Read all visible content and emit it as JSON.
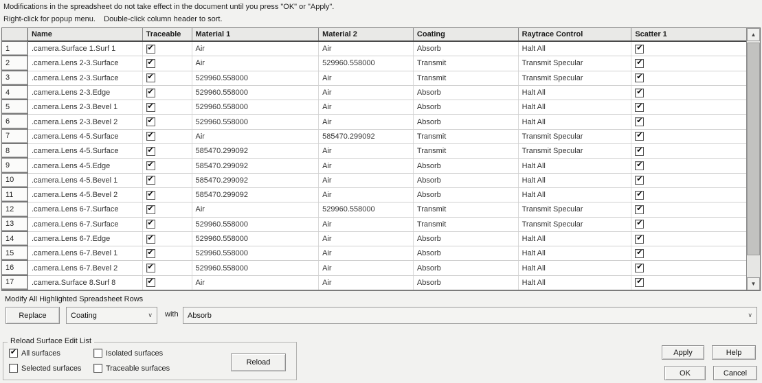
{
  "instructions": {
    "line1": "Modifications in the spreadsheet do not take effect in the document until you press \"OK\" or \"Apply\".",
    "line2": "Right-click for popup menu.    Double-click column header to sort."
  },
  "table": {
    "columns": [
      "",
      "Name",
      "Traceable",
      "Material 1",
      "Material 2",
      "Coating",
      "Raytrace Control",
      "Scatter 1"
    ],
    "rows": [
      {
        "num": "1",
        "name": ".camera.Surface 1.Surf 1",
        "traceable": true,
        "material1": "Air",
        "material2": "Air",
        "coating": "Absorb",
        "raytrace": "Halt All",
        "scatter": true
      },
      {
        "num": "2",
        "name": ".camera.Lens 2-3.Surface",
        "traceable": true,
        "material1": "Air",
        "material2": "529960.558000",
        "coating": "Transmit",
        "raytrace": "Transmit Specular",
        "scatter": true
      },
      {
        "num": "3",
        "name": ".camera.Lens 2-3.Surface",
        "traceable": true,
        "material1": "529960.558000",
        "material2": "Air",
        "coating": "Transmit",
        "raytrace": "Transmit Specular",
        "scatter": true
      },
      {
        "num": "4",
        "name": ".camera.Lens 2-3.Edge",
        "traceable": true,
        "material1": "529960.558000",
        "material2": "Air",
        "coating": "Absorb",
        "raytrace": "Halt All",
        "scatter": true
      },
      {
        "num": "5",
        "name": ".camera.Lens 2-3.Bevel 1",
        "traceable": true,
        "material1": "529960.558000",
        "material2": "Air",
        "coating": "Absorb",
        "raytrace": "Halt All",
        "scatter": true
      },
      {
        "num": "6",
        "name": ".camera.Lens 2-3.Bevel 2",
        "traceable": true,
        "material1": "529960.558000",
        "material2": "Air",
        "coating": "Absorb",
        "raytrace": "Halt All",
        "scatter": true
      },
      {
        "num": "7",
        "name": ".camera.Lens 4-5.Surface",
        "traceable": true,
        "material1": "Air",
        "material2": "585470.299092",
        "coating": "Transmit",
        "raytrace": "Transmit Specular",
        "scatter": true
      },
      {
        "num": "8",
        "name": ".camera.Lens 4-5.Surface",
        "traceable": true,
        "material1": "585470.299092",
        "material2": "Air",
        "coating": "Transmit",
        "raytrace": "Transmit Specular",
        "scatter": true
      },
      {
        "num": "9",
        "name": ".camera.Lens 4-5.Edge",
        "traceable": true,
        "material1": "585470.299092",
        "material2": "Air",
        "coating": "Absorb",
        "raytrace": "Halt All",
        "scatter": true
      },
      {
        "num": "10",
        "name": ".camera.Lens 4-5.Bevel 1",
        "traceable": true,
        "material1": "585470.299092",
        "material2": "Air",
        "coating": "Absorb",
        "raytrace": "Halt All",
        "scatter": true
      },
      {
        "num": "11",
        "name": ".camera.Lens 4-5.Bevel 2",
        "traceable": true,
        "material1": "585470.299092",
        "material2": "Air",
        "coating": "Absorb",
        "raytrace": "Halt All",
        "scatter": true
      },
      {
        "num": "12",
        "name": ".camera.Lens 6-7.Surface",
        "traceable": true,
        "material1": "Air",
        "material2": "529960.558000",
        "coating": "Transmit",
        "raytrace": "Transmit Specular",
        "scatter": true
      },
      {
        "num": "13",
        "name": ".camera.Lens 6-7.Surface",
        "traceable": true,
        "material1": "529960.558000",
        "material2": "Air",
        "coating": "Transmit",
        "raytrace": "Transmit Specular",
        "scatter": true
      },
      {
        "num": "14",
        "name": ".camera.Lens 6-7.Edge",
        "traceable": true,
        "material1": "529960.558000",
        "material2": "Air",
        "coating": "Absorb",
        "raytrace": "Halt All",
        "scatter": true
      },
      {
        "num": "15",
        "name": ".camera.Lens 6-7.Bevel 1",
        "traceable": true,
        "material1": "529960.558000",
        "material2": "Air",
        "coating": "Absorb",
        "raytrace": "Halt All",
        "scatter": true
      },
      {
        "num": "16",
        "name": ".camera.Lens 6-7.Bevel 2",
        "traceable": true,
        "material1": "529960.558000",
        "material2": "Air",
        "coating": "Absorb",
        "raytrace": "Halt All",
        "scatter": true
      },
      {
        "num": "17",
        "name": ".camera.Surface 8.Surf 8",
        "traceable": true,
        "material1": "Air",
        "material2": "Air",
        "coating": "Absorb",
        "raytrace": "Halt All",
        "scatter": true
      }
    ]
  },
  "scrollbar": {
    "up_glyph": "▲",
    "down_glyph": "▼"
  },
  "modify": {
    "title": "Modify All Highlighted Spreadsheet Rows",
    "replace_button": "Replace",
    "property_selected": "Coating",
    "with_label": "with",
    "value_selected": "Absorb",
    "arrow_glyph": "∨"
  },
  "reload": {
    "title": "Reload Surface Edit List",
    "checkboxes": [
      {
        "label": "All surfaces",
        "checked": true
      },
      {
        "label": "Selected surfaces",
        "checked": false
      },
      {
        "label": "Isolated surfaces",
        "checked": false
      },
      {
        "label": "Traceable surfaces",
        "checked": false
      }
    ],
    "reload_button": "Reload"
  },
  "actions": {
    "apply": "Apply",
    "help": "Help",
    "ok": "OK",
    "cancel": "Cancel"
  }
}
